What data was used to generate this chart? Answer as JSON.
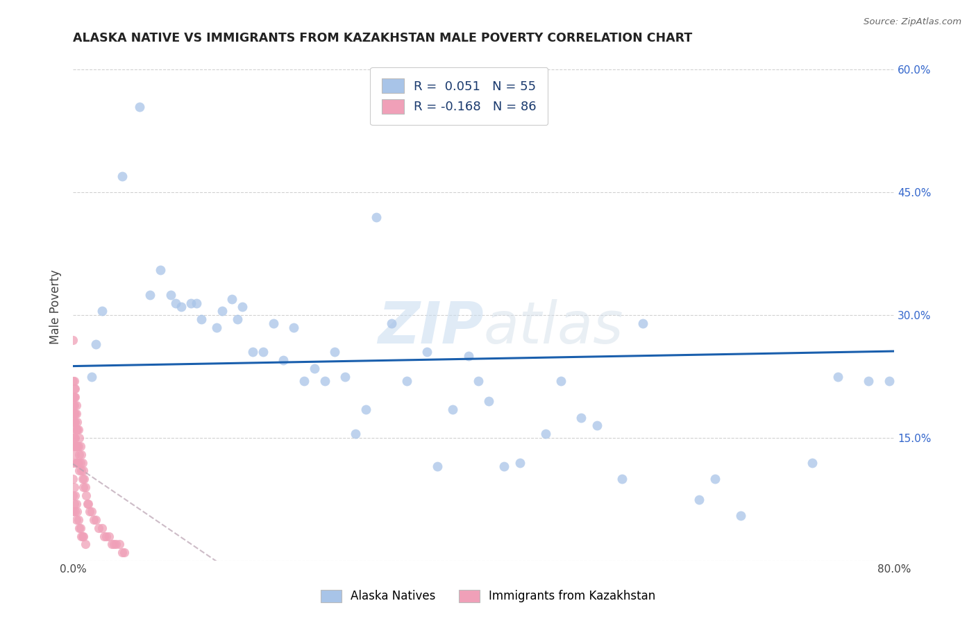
{
  "title": "ALASKA NATIVE VS IMMIGRANTS FROM KAZAKHSTAN MALE POVERTY CORRELATION CHART",
  "source": "Source: ZipAtlas.com",
  "ylabel": "Male Poverty",
  "xmin": 0.0,
  "xmax": 0.8,
  "ymin": 0.0,
  "ymax": 0.62,
  "yticks": [
    0.0,
    0.15,
    0.3,
    0.45,
    0.6
  ],
  "ytick_labels_right": [
    "",
    "15.0%",
    "30.0%",
    "45.0%",
    "60.0%"
  ],
  "blue_color": "#a8c4e8",
  "pink_color": "#f0a0b8",
  "line_blue_color": "#1a5fad",
  "line_pink_color": "#c8a0b0",
  "alaska_x": [
    0.018,
    0.022,
    0.028,
    0.048,
    0.065,
    0.075,
    0.085,
    0.095,
    0.1,
    0.105,
    0.115,
    0.12,
    0.125,
    0.14,
    0.145,
    0.155,
    0.16,
    0.165,
    0.175,
    0.185,
    0.195,
    0.205,
    0.215,
    0.225,
    0.235,
    0.245,
    0.255,
    0.265,
    0.275,
    0.285,
    0.295,
    0.31,
    0.325,
    0.345,
    0.355,
    0.37,
    0.385,
    0.395,
    0.405,
    0.42,
    0.435,
    0.46,
    0.475,
    0.495,
    0.51,
    0.535,
    0.555,
    0.61,
    0.625,
    0.65,
    0.72,
    0.745,
    0.775,
    0.795
  ],
  "alaska_y": [
    0.225,
    0.265,
    0.305,
    0.47,
    0.555,
    0.325,
    0.355,
    0.325,
    0.315,
    0.31,
    0.315,
    0.315,
    0.295,
    0.285,
    0.305,
    0.32,
    0.295,
    0.31,
    0.255,
    0.255,
    0.29,
    0.245,
    0.285,
    0.22,
    0.235,
    0.22,
    0.255,
    0.225,
    0.155,
    0.185,
    0.42,
    0.29,
    0.22,
    0.255,
    0.115,
    0.185,
    0.25,
    0.22,
    0.195,
    0.115,
    0.12,
    0.155,
    0.22,
    0.175,
    0.165,
    0.1,
    0.29,
    0.075,
    0.1,
    0.055,
    0.12,
    0.225,
    0.22,
    0.22
  ],
  "kaz_x": [
    0.0,
    0.0,
    0.0,
    0.0,
    0.0,
    0.0,
    0.0,
    0.0,
    0.0,
    0.0,
    0.001,
    0.001,
    0.001,
    0.001,
    0.001,
    0.001,
    0.001,
    0.001,
    0.002,
    0.002,
    0.002,
    0.002,
    0.002,
    0.002,
    0.003,
    0.003,
    0.003,
    0.003,
    0.003,
    0.004,
    0.004,
    0.004,
    0.004,
    0.005,
    0.005,
    0.005,
    0.006,
    0.006,
    0.006,
    0.007,
    0.007,
    0.008,
    0.008,
    0.009,
    0.009,
    0.01,
    0.01,
    0.011,
    0.012,
    0.013,
    0.014,
    0.015,
    0.016,
    0.018,
    0.02,
    0.022,
    0.025,
    0.028,
    0.03,
    0.032,
    0.035,
    0.038,
    0.04,
    0.042,
    0.045,
    0.048,
    0.05,
    0.0,
    0.0,
    0.0,
    0.001,
    0.001,
    0.002,
    0.002,
    0.003,
    0.003,
    0.004,
    0.005,
    0.006,
    0.007,
    0.008,
    0.009,
    0.01,
    0.012
  ],
  "kaz_y": [
    0.27,
    0.22,
    0.2,
    0.19,
    0.18,
    0.17,
    0.16,
    0.15,
    0.14,
    0.12,
    0.22,
    0.21,
    0.2,
    0.19,
    0.18,
    0.17,
    0.15,
    0.14,
    0.21,
    0.2,
    0.18,
    0.17,
    0.15,
    0.13,
    0.19,
    0.18,
    0.16,
    0.14,
    0.12,
    0.17,
    0.16,
    0.14,
    0.12,
    0.16,
    0.14,
    0.12,
    0.15,
    0.13,
    0.11,
    0.14,
    0.12,
    0.13,
    0.11,
    0.12,
    0.1,
    0.11,
    0.09,
    0.1,
    0.09,
    0.08,
    0.07,
    0.07,
    0.06,
    0.06,
    0.05,
    0.05,
    0.04,
    0.04,
    0.03,
    0.03,
    0.03,
    0.02,
    0.02,
    0.02,
    0.02,
    0.01,
    0.01,
    0.1,
    0.08,
    0.06,
    0.09,
    0.07,
    0.08,
    0.06,
    0.07,
    0.05,
    0.06,
    0.05,
    0.04,
    0.04,
    0.03,
    0.03,
    0.03,
    0.02
  ]
}
